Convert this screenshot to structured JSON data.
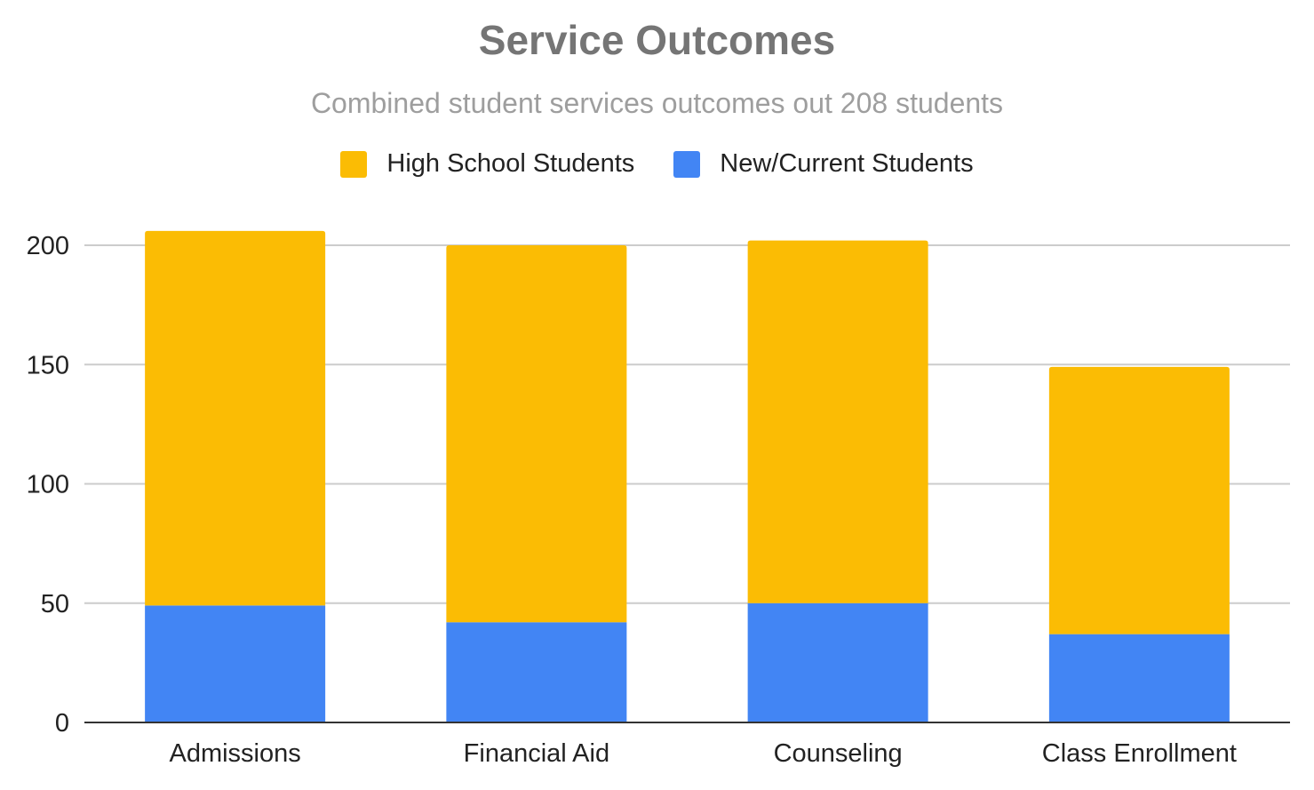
{
  "chart_data": {
    "type": "bar",
    "stacked": true,
    "title": "Service Outcomes",
    "subtitle": "Combined student services outcomes out 208 students",
    "categories": [
      "Admissions",
      "Financial Aid",
      "Counseling",
      "Class Enrollment"
    ],
    "series": [
      {
        "name": "New/Current Students",
        "color": "#4285f4",
        "values": [
          49,
          42,
          50,
          37
        ]
      },
      {
        "name": "High School Students",
        "color": "#fbbc04",
        "values": [
          157,
          158,
          152,
          112
        ]
      }
    ],
    "legend_order": [
      1,
      0
    ],
    "legend_position": "top",
    "ylim": [
      0,
      200
    ],
    "yticks": [
      "0",
      "50",
      "100",
      "150",
      "200"
    ],
    "grid": true,
    "xlabel": "",
    "ylabel": ""
  }
}
